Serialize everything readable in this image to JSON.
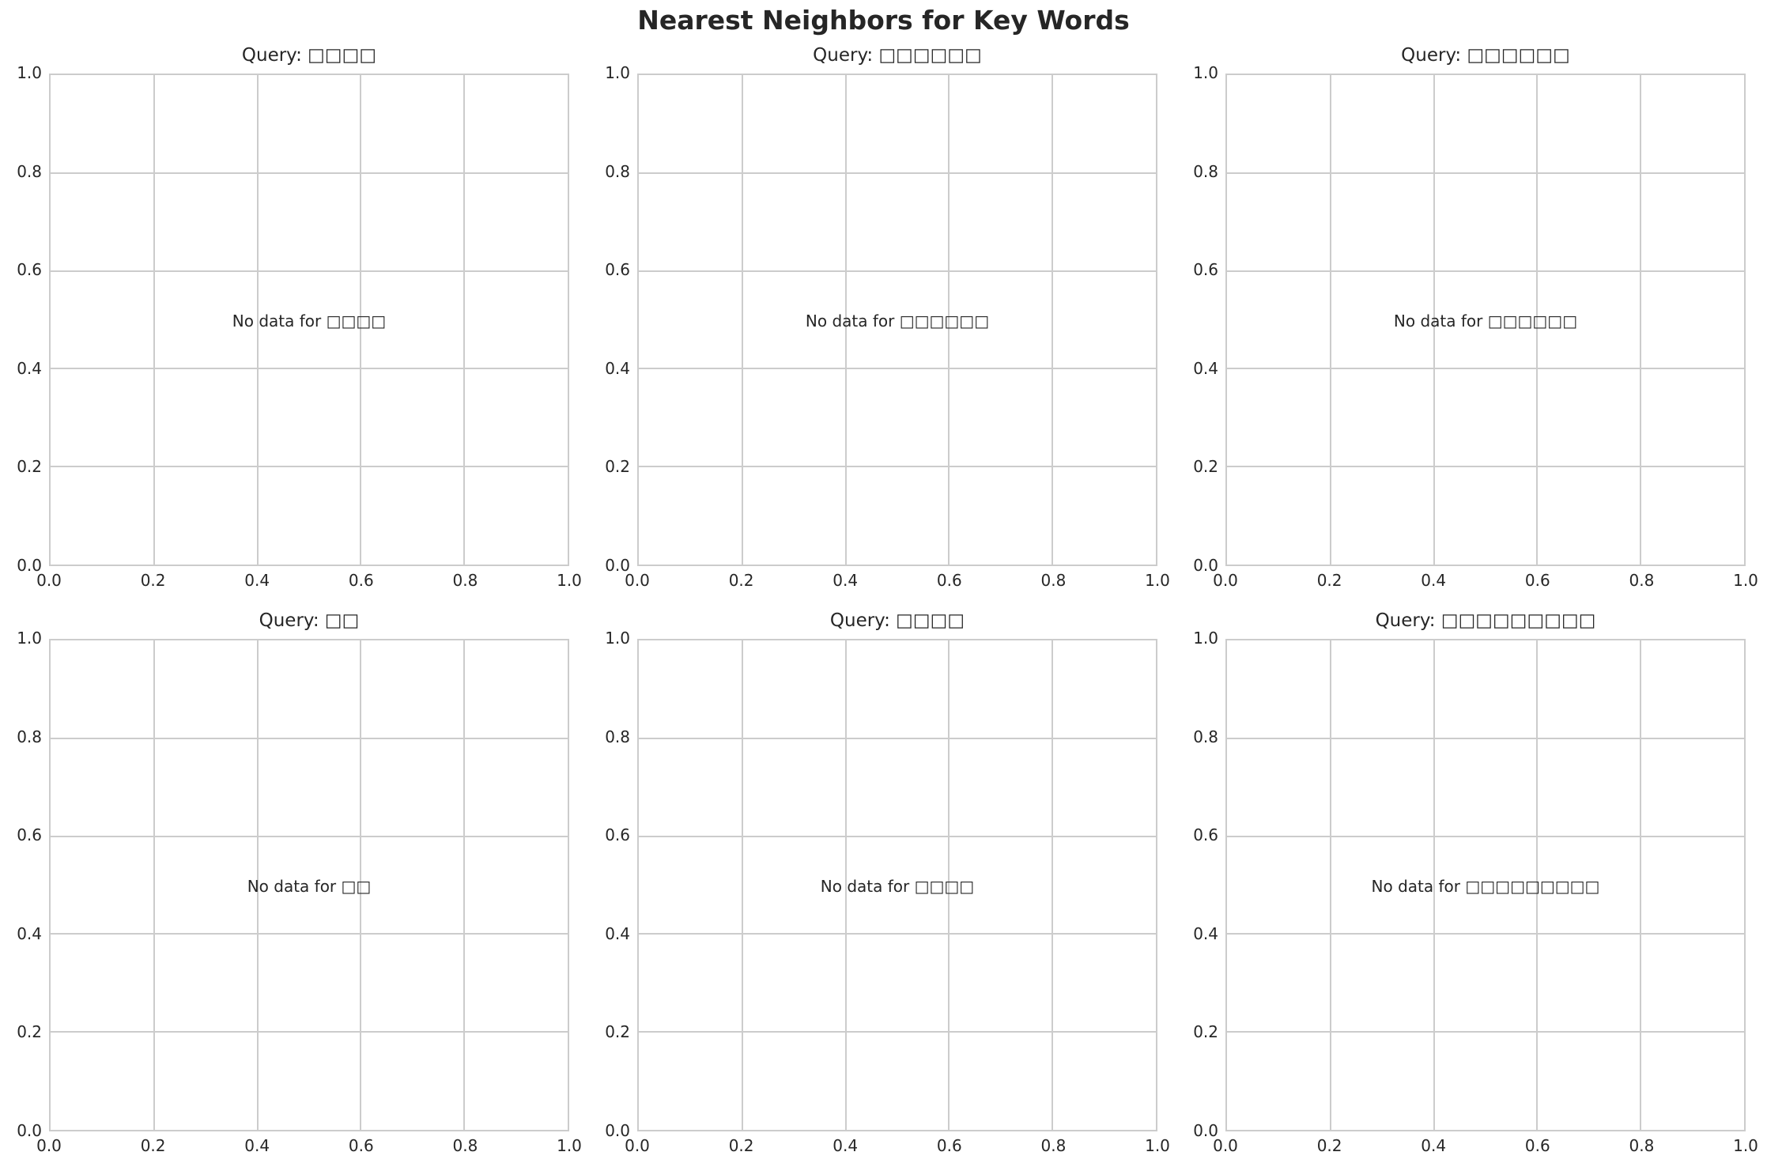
{
  "figure": {
    "suptitle": "Nearest Neighbors for Key Words"
  },
  "panels": [
    {
      "title": "Query: □□□□",
      "message": "No data for □□□□"
    },
    {
      "title": "Query: □□□□□□",
      "message": "No data for □□□□□□"
    },
    {
      "title": "Query: □□□□□□",
      "message": "No data for □□□□□□"
    },
    {
      "title": "Query: □□",
      "message": "No data for □□"
    },
    {
      "title": "Query: □□□□",
      "message": "No data for □□□□"
    },
    {
      "title": "Query: □□□□□□□□□",
      "message": "No data for □□□□□□□□□"
    }
  ],
  "axis": {
    "xticks": [
      "0.0",
      "0.2",
      "0.4",
      "0.6",
      "0.8",
      "1.0"
    ],
    "yticks": [
      "0.0",
      "0.2",
      "0.4",
      "0.6",
      "0.8",
      "1.0"
    ]
  },
  "colors": {
    "grid": "#cccccc",
    "text": "#262626",
    "background": "#ffffff"
  },
  "chart_data": [
    {
      "type": "scatter",
      "title": "Query: □□□□",
      "xlabel": "",
      "ylabel": "",
      "xlim": [
        0,
        1
      ],
      "ylim": [
        0,
        1
      ],
      "grid": true,
      "series": [],
      "annotations": [
        "No data for □□□□"
      ]
    },
    {
      "type": "scatter",
      "title": "Query: □□□□□□",
      "xlabel": "",
      "ylabel": "",
      "xlim": [
        0,
        1
      ],
      "ylim": [
        0,
        1
      ],
      "grid": true,
      "series": [],
      "annotations": [
        "No data for □□□□□□"
      ]
    },
    {
      "type": "scatter",
      "title": "Query: □□□□□□",
      "xlabel": "",
      "ylabel": "",
      "xlim": [
        0,
        1
      ],
      "ylim": [
        0,
        1
      ],
      "grid": true,
      "series": [],
      "annotations": [
        "No data for □□□□□□"
      ]
    },
    {
      "type": "scatter",
      "title": "Query: □□",
      "xlabel": "",
      "ylabel": "",
      "xlim": [
        0,
        1
      ],
      "ylim": [
        0,
        1
      ],
      "grid": true,
      "series": [],
      "annotations": [
        "No data for □□"
      ]
    },
    {
      "type": "scatter",
      "title": "Query: □□□□",
      "xlabel": "",
      "ylabel": "",
      "xlim": [
        0,
        1
      ],
      "ylim": [
        0,
        1
      ],
      "grid": true,
      "series": [],
      "annotations": [
        "No data for □□□□"
      ]
    },
    {
      "type": "scatter",
      "title": "Query: □□□□□□□□□",
      "xlabel": "",
      "ylabel": "",
      "xlim": [
        0,
        1
      ],
      "ylim": [
        0,
        1
      ],
      "grid": true,
      "series": [],
      "annotations": [
        "No data for □□□□□□□□□"
      ]
    }
  ]
}
